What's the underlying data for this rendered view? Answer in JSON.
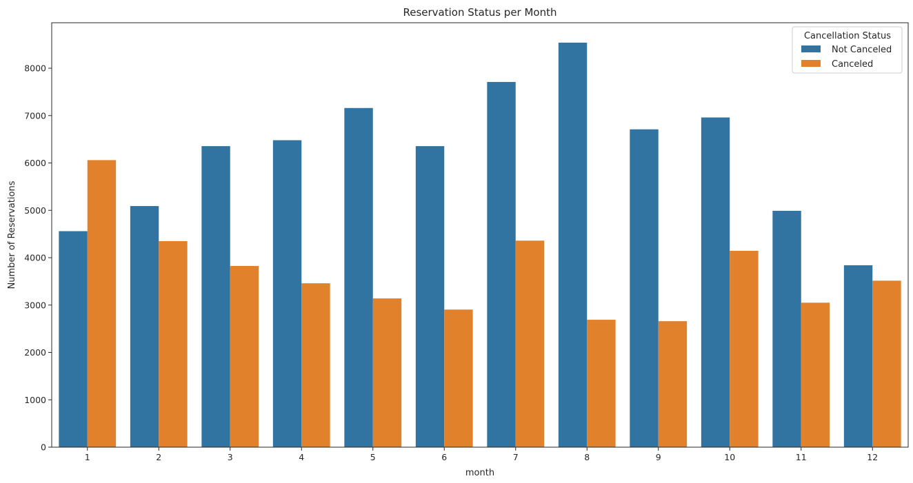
{
  "chart_data": {
    "type": "bar",
    "title": "Reservation Status per Month",
    "xlabel": "month",
    "ylabel": "Number of Reservations",
    "categories": [
      "1",
      "2",
      "3",
      "4",
      "5",
      "6",
      "7",
      "8",
      "9",
      "10",
      "11",
      "12"
    ],
    "series": [
      {
        "name": "Not Canceled",
        "color": "#3274a1",
        "values": [
          4560,
          5090,
          6355,
          6480,
          7160,
          6355,
          7710,
          8540,
          6710,
          6960,
          4990,
          3840
        ]
      },
      {
        "name": "Canceled",
        "color": "#e1812c",
        "values": [
          6060,
          4350,
          3825,
          3460,
          3140,
          2905,
          4360,
          2690,
          2660,
          4145,
          3050,
          3515
        ]
      }
    ],
    "ylim": [
      0,
      8960
    ],
    "yticks": [
      0,
      1000,
      2000,
      3000,
      4000,
      5000,
      6000,
      7000,
      8000
    ],
    "grid": false,
    "legend": {
      "title": "Cancellation Status",
      "position": "top-right"
    }
  }
}
